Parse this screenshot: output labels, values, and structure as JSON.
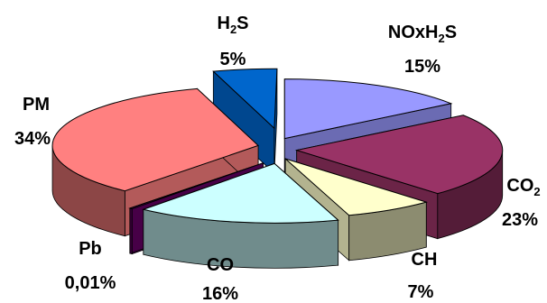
{
  "chart_data": {
    "type": "pie",
    "style": "3d-exploded",
    "legend": "none",
    "slices": [
      {
        "label_main": "NOxH",
        "label_sub": "2",
        "label_tail": "S",
        "value_label": "15%",
        "value": 15,
        "color": "#9999FF"
      },
      {
        "label_main": "CO",
        "label_sub": "2",
        "label_tail": "",
        "value_label": "23%",
        "value": 23,
        "color": "#993366"
      },
      {
        "label_main": "CH",
        "label_sub": "",
        "label_tail": "",
        "value_label": "7%",
        "value": 7,
        "color": "#FFFFCC"
      },
      {
        "label_main": "CO",
        "label_sub": "",
        "label_tail": "",
        "value_label": "16%",
        "value": 16,
        "color": "#CCFFFF"
      },
      {
        "label_main": "Pb",
        "label_sub": "",
        "label_tail": "",
        "value_label": "0,01%",
        "value": 0.01,
        "color": "#660066"
      },
      {
        "label_main": "PM",
        "label_sub": "",
        "label_tail": "",
        "value_label": "34%",
        "value": 34,
        "color": "#FF8080"
      },
      {
        "label_main": "H",
        "label_sub": "2",
        "label_tail": "S",
        "value_label": "5%",
        "value": 5,
        "color": "#0066CC"
      }
    ]
  }
}
